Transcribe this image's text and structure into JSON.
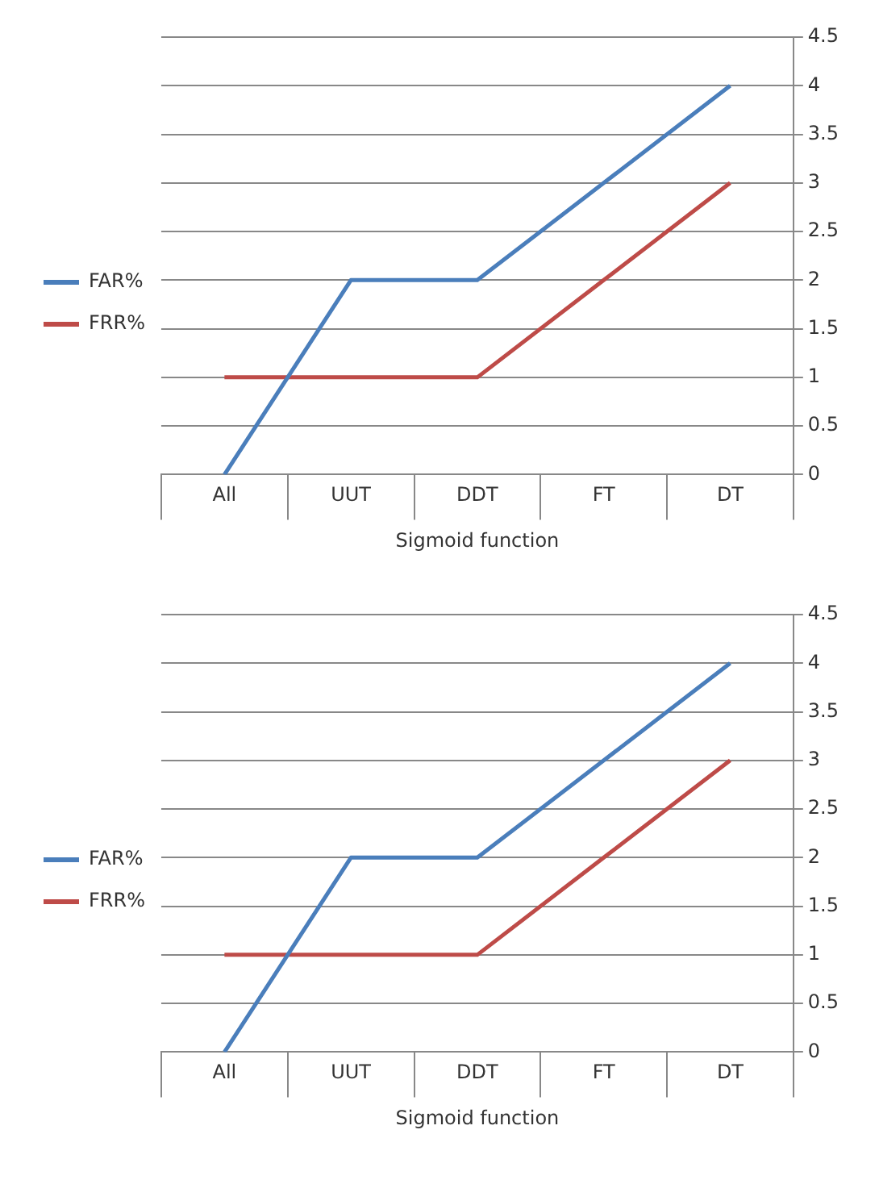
{
  "chart_data": [
    {
      "type": "line",
      "categories": [
        "All",
        "UUT",
        "DDT",
        "FT",
        "DT"
      ],
      "xlabel": "Sigmoid function",
      "series": [
        {
          "name": "FAR%",
          "color": "#4a7ebb",
          "values": [
            0,
            2,
            2,
            3,
            4
          ]
        },
        {
          "name": "FRR%",
          "color": "#be4b48",
          "values": [
            1,
            1,
            1,
            2,
            3
          ]
        }
      ],
      "ylim": [
        0,
        4.5
      ],
      "yticks": [
        0,
        0.5,
        1,
        1.5,
        2,
        2.5,
        3,
        3.5,
        4,
        4.5
      ],
      "grid": "y",
      "legend": "left",
      "marker": "none",
      "line_style": "solid"
    },
    {
      "type": "line",
      "categories": [
        "All",
        "UUT",
        "DDT",
        "FT",
        "DT"
      ],
      "xlabel": "Sigmoid function",
      "series": [
        {
          "name": "FAR%",
          "color": "#4a7ebb",
          "values": [
            0,
            2,
            2,
            3,
            4
          ]
        },
        {
          "name": "FRR%",
          "color": "#be4b48",
          "values": [
            1,
            1,
            1,
            2,
            3
          ]
        }
      ],
      "ylim": [
        0,
        4.5
      ],
      "yticks": [
        0,
        0.5,
        1,
        1.5,
        2,
        2.5,
        3,
        3.5,
        4,
        4.5
      ],
      "grid": "y",
      "legend": "left",
      "marker": "none",
      "line_style": "solid"
    }
  ]
}
